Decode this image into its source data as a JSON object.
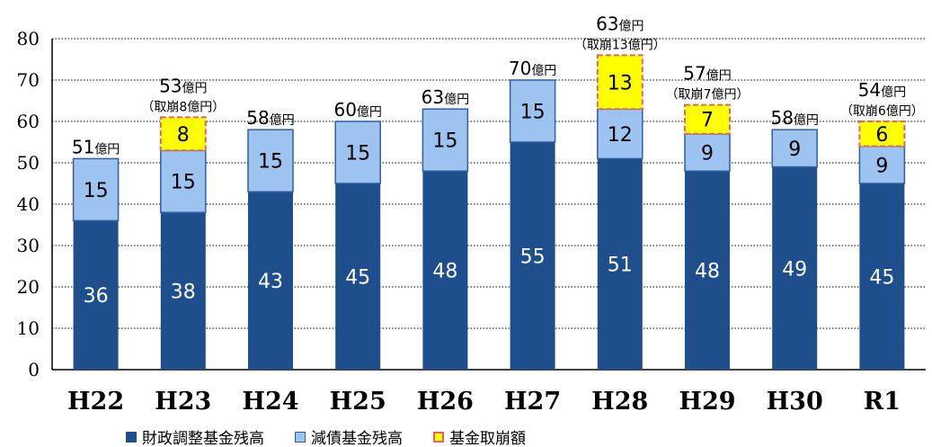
{
  "chart_data": {
    "type": "bar",
    "stacked": true,
    "categories": [
      "H22",
      "H23",
      "H24",
      "H25",
      "H26",
      "H27",
      "H28",
      "H29",
      "H30",
      "R1"
    ],
    "series": [
      {
        "name": "財政調整基金残高",
        "color": "#1f4e8c",
        "values": [
          36,
          38,
          43,
          45,
          48,
          55,
          51,
          48,
          49,
          45
        ]
      },
      {
        "name": "減債基金残高",
        "color": "#9dc3f0",
        "values": [
          15,
          15,
          15,
          15,
          15,
          15,
          12,
          9,
          9,
          9
        ]
      },
      {
        "name": "基金取崩額",
        "color": "#ffff00",
        "values": [
          null,
          8,
          null,
          null,
          null,
          null,
          13,
          7,
          null,
          6
        ]
      }
    ],
    "total_labels": [
      {
        "value": "51",
        "unit": "億円",
        "note": ""
      },
      {
        "value": "53",
        "unit": "億円",
        "note": "（取崩8億円）"
      },
      {
        "value": "58",
        "unit": "億円",
        "note": ""
      },
      {
        "value": "60",
        "unit": "億円",
        "note": ""
      },
      {
        "value": "63",
        "unit": "億円",
        "note": ""
      },
      {
        "value": "70",
        "unit": "億円",
        "note": ""
      },
      {
        "value": "63",
        "unit": "億円",
        "note": "（取崩13億円）"
      },
      {
        "value": "57",
        "unit": "億円",
        "note": "（取崩7億円）"
      },
      {
        "value": "58",
        "unit": "億円",
        "note": ""
      },
      {
        "value": "54",
        "unit": "億円",
        "note": "（取崩6億円）"
      }
    ],
    "ylim": [
      0,
      80
    ],
    "yticks": [
      0,
      10,
      20,
      30,
      40,
      50,
      60,
      70,
      80
    ],
    "grid": true,
    "legend_position": "bottom",
    "colors": {
      "dark": "#1f4e8c",
      "light": "#9dc3f0",
      "light_border": "#2f5f9f",
      "yellow": "#ffff00",
      "yellow_border": "#e06666",
      "dark_label": "#ffffff",
      "light_label": "#000000"
    }
  },
  "legend": {
    "items": [
      {
        "label": "財政調整基金残高",
        "color": "#1f4e8c"
      },
      {
        "label": "減債基金残高",
        "color": "#9dc3f0"
      },
      {
        "label": "基金取崩額",
        "color": "#ffff00"
      }
    ]
  }
}
